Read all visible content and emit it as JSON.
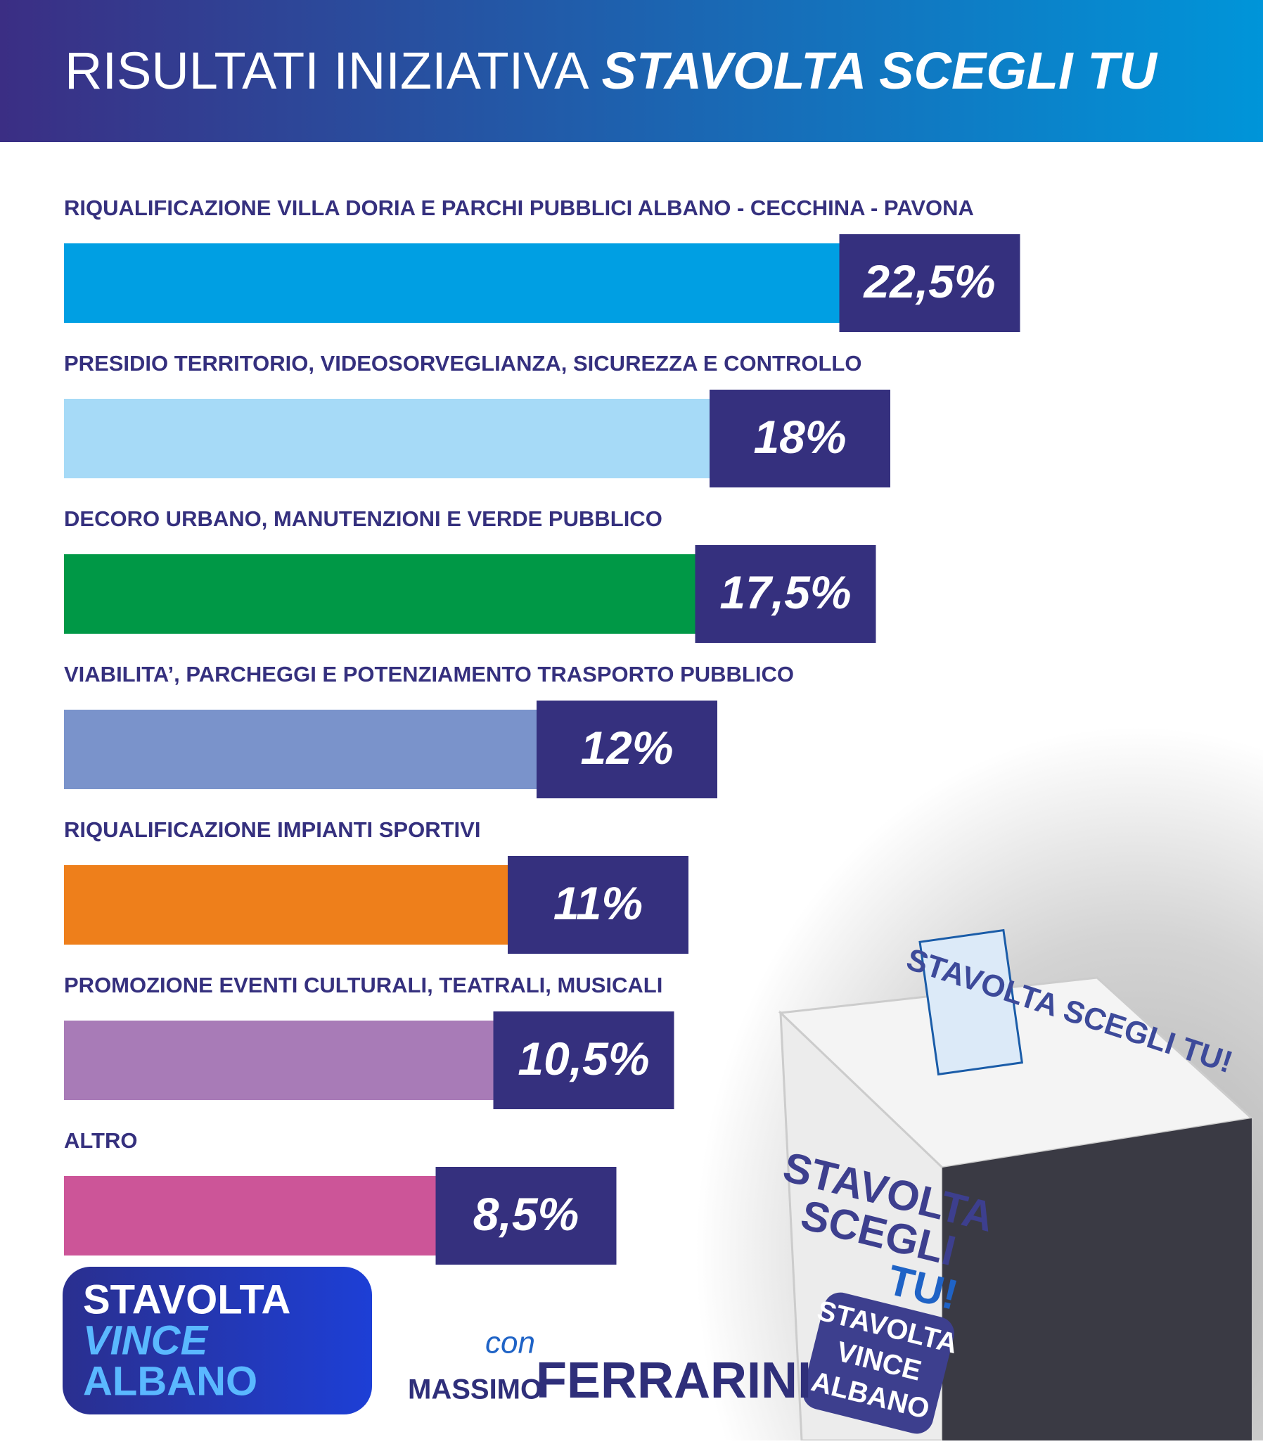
{
  "chart_data": {
    "type": "hbar",
    "title": "RISULTATI INIZIATIVA",
    "title_emphasis": "STAVOLTA SCEGLI TU",
    "categories": [
      "RIQUALIFICAZIONE VILLA DORIA E PARCHI PUBBLICI ALBANO - CECCHINA - PAVONA",
      "PRESIDIO TERRITORIO, VIDEOSORVEGLIANZA, SICUREZZA E CONTROLLO",
      "DECORO URBANO, MANUTENZIONI E VERDE PUBBLICO",
      "VIABILITA’, PARCHEGGI E POTENZIAMENTO TRASPORTO PUBBLICO",
      "RIQUALIFICAZIONE IMPIANTI SPORTIVI",
      "PROMOZIONE EVENTI CULTURALI, TEATRALI, MUSICALI",
      "ALTRO"
    ],
    "values": [
      22.5,
      18,
      17.5,
      12,
      11,
      10.5,
      8.5
    ],
    "value_labels": [
      "22,5%",
      "18%",
      "17,5%",
      "12%",
      "11%",
      "10,5%",
      "8,5%"
    ],
    "colors": [
      "#009fe3",
      "#a6daf7",
      "#009846",
      "#7a93cb",
      "#ee7f1b",
      "#a87bb7",
      "#cc5598"
    ],
    "label_box_color": "#35307e"
  },
  "logo": {
    "lines": [
      "STAVOLTA",
      "VINCE",
      "ALBANO"
    ]
  },
  "signature": {
    "prefix": "con",
    "first_name": "MASSIMO",
    "last_name": "FERRARINI"
  },
  "photo": {
    "box_top": "STAVOLTA SCEGLI TU!",
    "box_side": [
      "STAVOLTA",
      "SCEGLI",
      "TU!"
    ],
    "box_badge": [
      "STAVOLTA",
      "VINCE",
      "ALBANO"
    ]
  }
}
